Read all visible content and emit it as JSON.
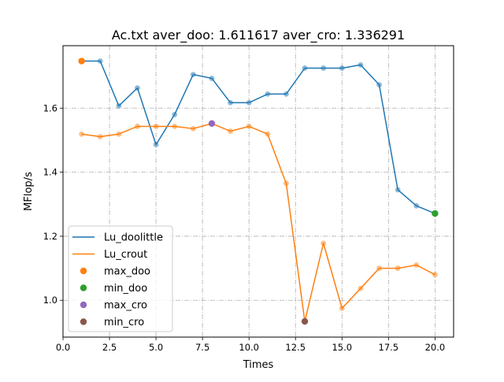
{
  "chart_data": {
    "type": "line",
    "title": "Ac.txt aver_doo: 1.611617 aver_cro: 1.336291",
    "xlabel": "Times",
    "ylabel": "MFlop/s",
    "xlim": [
      -0.0,
      21.0
    ],
    "ylim": [
      0.885,
      1.795
    ],
    "xticks": [
      0.0,
      2.5,
      5.0,
      7.5,
      10.0,
      12.5,
      15.0,
      17.5,
      20.0
    ],
    "xtick_labels": [
      "0.0",
      "2.5",
      "5.0",
      "7.5",
      "10.0",
      "12.5",
      "15.0",
      "17.5",
      "20.0"
    ],
    "yticks": [
      1.0,
      1.2,
      1.4,
      1.6
    ],
    "ytick_labels": [
      "1.0",
      "1.2",
      "1.4",
      "1.6"
    ],
    "grid": true,
    "legend_location": "lower-left",
    "x": [
      1,
      2,
      3,
      4,
      5,
      6,
      7,
      8,
      9,
      10,
      11,
      12,
      13,
      14,
      15,
      16,
      17,
      18,
      19,
      20
    ],
    "series": [
      {
        "name": "Lu_doolittle",
        "color": "#1f77b4",
        "values": [
          1.747,
          1.747,
          1.607,
          1.663,
          1.486,
          1.58,
          1.705,
          1.693,
          1.617,
          1.617,
          1.644,
          1.644,
          1.725,
          1.725,
          1.725,
          1.735,
          1.673,
          1.345,
          1.295,
          1.271
        ]
      },
      {
        "name": "Lu_crout",
        "color": "#ff7f0e",
        "values": [
          1.519,
          1.511,
          1.519,
          1.543,
          1.543,
          1.543,
          1.536,
          1.552,
          1.528,
          1.543,
          1.519,
          1.365,
          0.934,
          1.178,
          0.975,
          1.037,
          1.1,
          1.1,
          1.11,
          1.08
        ]
      }
    ],
    "markers": [
      {
        "name": "max_doo",
        "color": "#ff7f0e",
        "x": 1,
        "y": 1.747
      },
      {
        "name": "min_doo",
        "color": "#2ca02c",
        "x": 20,
        "y": 1.271
      },
      {
        "name": "max_cro",
        "color": "#9467bd",
        "x": 8,
        "y": 1.552
      },
      {
        "name": "min_cro",
        "color": "#8c564b",
        "x": 13,
        "y": 0.934
      }
    ]
  }
}
